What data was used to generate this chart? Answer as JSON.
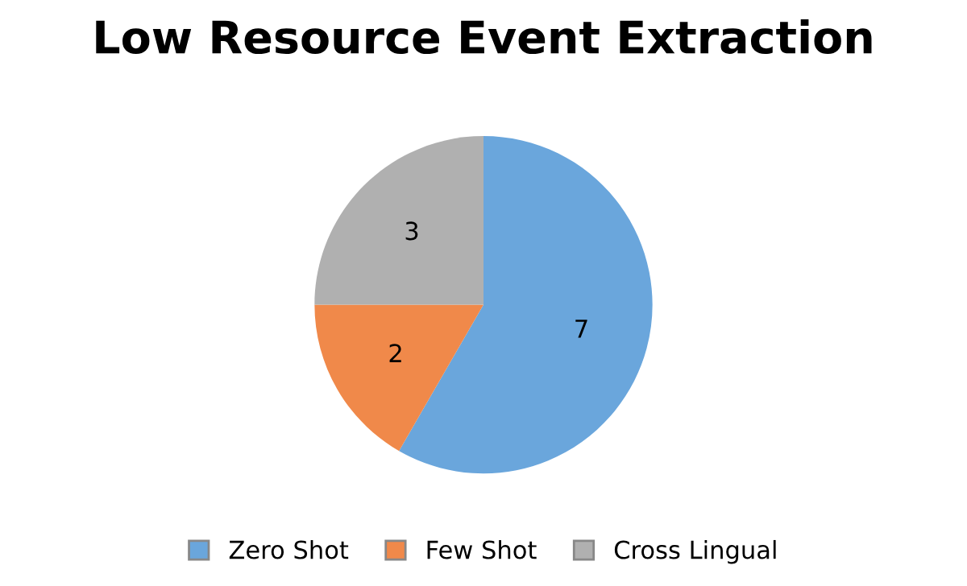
{
  "chart_data": {
    "type": "pie",
    "title": "Low Resource Event Extraction",
    "categories": [
      "Zero Shot",
      "Few Shot",
      "Cross Lingual"
    ],
    "values": [
      7,
      2,
      3
    ],
    "colors": [
      "#6aa6dc",
      "#f0894a",
      "#b0b0b0"
    ],
    "data_labels": true,
    "legend": "bottom"
  }
}
